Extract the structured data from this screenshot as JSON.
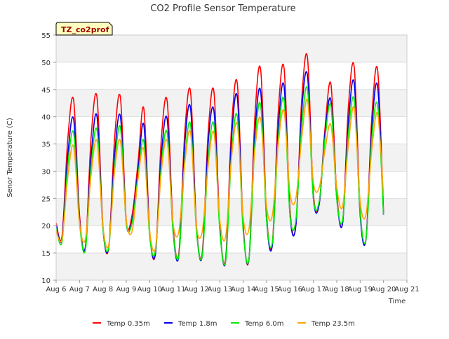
{
  "chart_data": {
    "type": "line",
    "title": "CO2 Profile Sensor Temperature",
    "xlabel": "Time",
    "ylabel": "Senor Temperature (C)",
    "site_label": "TZ_co2prof",
    "ylim": [
      10,
      55
    ],
    "y_ticks": [
      10,
      15,
      20,
      25,
      30,
      35,
      40,
      45,
      50,
      55
    ],
    "xlim": [
      "2024-08-06",
      "2024-08-21"
    ],
    "x_ticks": [
      "Aug 6",
      "Aug 7",
      "Aug 8",
      "Aug 9",
      "Aug 10",
      "Aug 11",
      "Aug 12",
      "Aug 13",
      "Aug 14",
      "Aug 15",
      "Aug 16",
      "Aug 17",
      "Aug 18",
      "Aug 19",
      "Aug 20",
      "Aug 21"
    ],
    "grid": true,
    "legend_position": "bottom",
    "series": [
      {
        "name": "Temp 0.35m",
        "color": "#ff0000",
        "start": "2024-08-06",
        "step_days": 0.25,
        "values": [
          20.5,
          18.0,
          36.0,
          43.0,
          22.0,
          16.0,
          36.5,
          43.5,
          20.0,
          16.0,
          36.0,
          43.5,
          21.0,
          22.0,
          31.5,
          41.5,
          19.0,
          15.0,
          36.0,
          42.8,
          20.0,
          15.0,
          37.0,
          44.5,
          20.0,
          15.0,
          37.0,
          44.5,
          20.0,
          14.0,
          38.0,
          46.0,
          20.0,
          14.0,
          40.0,
          48.5,
          22.0,
          17.0,
          41.0,
          48.8,
          23.0,
          20.0,
          43.0,
          50.8,
          26.0,
          24.0,
          38.0,
          46.0,
          26.0,
          20.5,
          42.0,
          49.0,
          23.0,
          17.5,
          40.0,
          48.5,
          22.5
        ]
      },
      {
        "name": "Temp 1.8m",
        "color": "#0000ee",
        "start": "2024-08-06",
        "step_days": 0.25,
        "values": [
          20.0,
          17.5,
          33.0,
          39.5,
          21.0,
          16.0,
          33.0,
          40.0,
          19.5,
          16.0,
          33.0,
          40.0,
          20.5,
          21.0,
          30.0,
          38.5,
          18.5,
          15.0,
          33.0,
          39.5,
          19.0,
          14.5,
          35.0,
          41.5,
          19.5,
          14.5,
          35.0,
          41.0,
          19.5,
          13.5,
          36.0,
          43.5,
          19.5,
          14.0,
          37.0,
          44.5,
          21.0,
          16.5,
          38.0,
          45.5,
          22.0,
          20.0,
          41.0,
          47.5,
          25.0,
          24.0,
          37.0,
          43.0,
          25.0,
          20.5,
          39.0,
          46.0,
          22.0,
          17.5,
          38.0,
          45.5,
          22.0
        ]
      },
      {
        "name": "Temp 6.0m",
        "color": "#00ee00",
        "start": "2024-08-06",
        "step_days": 0.25,
        "values": [
          19.5,
          17.0,
          31.0,
          37.0,
          20.5,
          15.5,
          31.0,
          37.5,
          19.5,
          16.0,
          31.0,
          38.0,
          20.5,
          20.5,
          29.0,
          35.5,
          18.0,
          15.5,
          31.0,
          37.0,
          19.0,
          14.5,
          32.0,
          38.5,
          19.0,
          14.5,
          32.0,
          38.5,
          19.0,
          13.5,
          33.0,
          40.0,
          19.0,
          14.0,
          35.0,
          42.0,
          21.0,
          17.0,
          36.0,
          43.0,
          22.0,
          21.0,
          38.0,
          45.0,
          25.0,
          24.5,
          36.0,
          42.0,
          25.0,
          21.0,
          37.0,
          43.0,
          22.5,
          17.5,
          36.0,
          42.0,
          22.0
        ]
      },
      {
        "name": "Temp 23.5m",
        "color": "#ffa500",
        "start": "2024-08-06",
        "step_days": 0.25,
        "values": [
          19.0,
          17.5,
          29.0,
          34.5,
          20.5,
          17.5,
          29.5,
          35.5,
          20.0,
          16.5,
          30.0,
          35.5,
          21.0,
          19.0,
          28.5,
          34.0,
          19.0,
          16.0,
          30.0,
          35.5,
          20.5,
          19.0,
          31.5,
          37.0,
          20.0,
          19.0,
          31.0,
          37.0,
          21.0,
          18.0,
          32.5,
          38.5,
          21.5,
          19.5,
          34.0,
          39.5,
          23.5,
          22.0,
          35.0,
          41.0,
          26.0,
          25.0,
          36.0,
          43.0,
          28.0,
          27.0,
          34.0,
          38.5,
          27.0,
          23.5,
          35.0,
          41.5,
          24.5,
          22.0,
          34.0,
          40.5,
          25.5
        ]
      }
    ]
  }
}
